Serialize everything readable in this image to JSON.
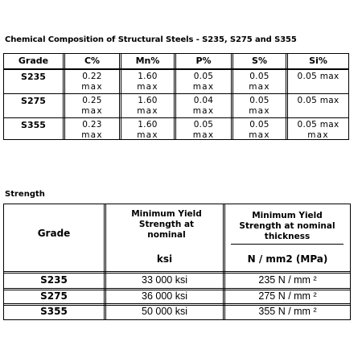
{
  "composition": {
    "title": "Chemical Composition of Structural Steels - S235, S275 and S355",
    "headers": [
      "Grade",
      "C%",
      "Mn%",
      "P%",
      "S%",
      "Si%"
    ],
    "rows": [
      {
        "grade": "S235",
        "c": "0.22",
        "c_max": "max",
        "mn": "1.60",
        "mn_max": "max",
        "p": "0.05",
        "p_max": "max",
        "s": "0.05",
        "s_max": "max",
        "si": "0.05 max",
        "si_max": ""
      },
      {
        "grade": "S275",
        "c": "0.25",
        "c_max": "max",
        "mn": "1.60",
        "mn_max": "max",
        "p": "0.04",
        "p_max": "max",
        "s": "0.05",
        "s_max": "max",
        "si": "0.05 max",
        "si_max": ""
      },
      {
        "grade": "S355",
        "c": "0.23",
        "c_max": "max",
        "mn": "1.60",
        "mn_max": "max",
        "p": "0.05",
        "p_max": "max",
        "s": "0.05",
        "s_max": "max",
        "si": "0.05 max",
        "si_max": "max"
      }
    ]
  },
  "strength": {
    "title": "Strength",
    "grade_header": "Grade",
    "col1_header": "Minimum Yield Strength at nominal",
    "col1_unit": "ksi",
    "col2_header": "Minimum Yield Strength at nominal thickness",
    "col2_unit": "N / mm2 (MPa)",
    "rows": [
      {
        "grade": "S235",
        "ksi": "33 000 ksi",
        "mpa": "235 N / mm ²"
      },
      {
        "grade": "S275",
        "ksi": "36 000 ksi",
        "mpa": "275 N / mm ²"
      },
      {
        "grade": "S355",
        "ksi": "50 000 ksi",
        "mpa": "355 N / mm ²"
      }
    ]
  }
}
